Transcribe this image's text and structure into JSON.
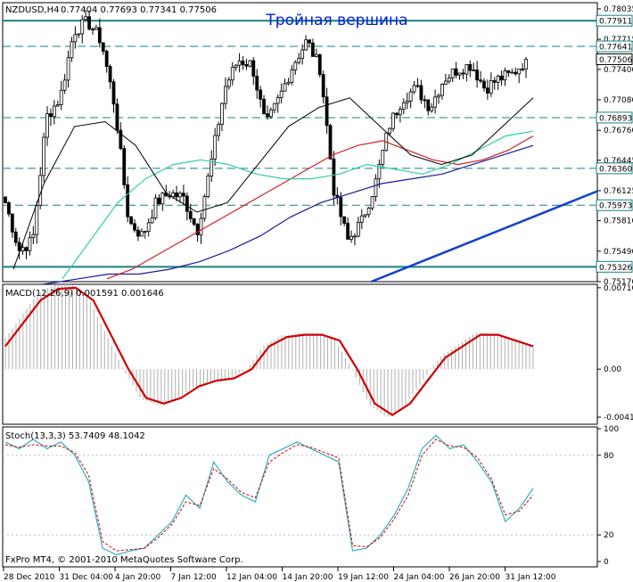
{
  "symbol_label": "NZDUSD,H4",
  "ohlc_readout": "0.77404 0.77693 0.77341 0.77506",
  "title": "Тройная вершина",
  "footer": "FxPro MT4, © 2001-2010 MetaQuotes Software Corp.",
  "colors": {
    "bull": "#000000",
    "ma_fast": "#000000",
    "ma_mid": "#2fd0a0",
    "ma_slow_red": "#d02020",
    "ma_slow_blue": "#1a1aa0",
    "trend": "#1040d0",
    "level": "#1a8080",
    "macd": "#d00000",
    "hist": "#b0b0b0",
    "stoch_main": "#30b0c0",
    "stoch_signal": "#d00000",
    "tag_bg": "#ffffff"
  },
  "chart_data": [
    {
      "type": "candlestick",
      "title": "Тройная вершина",
      "ylim": [
        0.7517,
        0.781
      ],
      "y_ticks": [
        "0.78035",
        "0.77715",
        "0.77400",
        "0.77080",
        "0.76760",
        "0.76445",
        "0.76125",
        "0.75810",
        "0.75490",
        "0.75170"
      ],
      "levels": [
        {
          "value": 0.77911,
          "label": "0.77911",
          "style": "solid"
        },
        {
          "value": 0.77641,
          "label": "0.77641",
          "style": "dashed"
        },
        {
          "value": 0.76893,
          "label": "0.76893",
          "style": "dashed"
        },
        {
          "value": 0.7636,
          "label": "0.76360",
          "style": "dashed"
        },
        {
          "value": 0.75973,
          "label": "0.75973",
          "style": "dashed"
        },
        {
          "value": 0.75326,
          "label": "0.75326",
          "style": "solid"
        }
      ],
      "current_price": {
        "value": 0.77506,
        "label": "0.77506"
      },
      "trendline": {
        "from": [
          0.62,
          0.7517
        ],
        "to": [
          1.0,
          0.7612
        ]
      },
      "close_path": [
        0.76,
        0.755,
        0.756,
        0.769,
        0.771,
        0.778,
        0.779,
        0.777,
        0.77,
        0.758,
        0.7565,
        0.76,
        0.761,
        0.7605,
        0.757,
        0.764,
        0.772,
        0.775,
        0.7745,
        0.768,
        0.771,
        0.7745,
        0.777,
        0.774,
        0.761,
        0.756,
        0.758,
        0.762,
        0.768,
        0.771,
        0.772,
        0.77,
        0.773,
        0.774,
        0.7745,
        0.772,
        0.773,
        0.7735,
        0.775
      ],
      "ma_fast": [
        0.753,
        0.762,
        0.768,
        0.7685,
        0.766,
        0.761,
        0.759,
        0.76,
        0.764,
        0.768,
        0.77,
        0.771,
        0.768,
        0.765,
        0.764,
        0.765,
        0.768,
        0.771
      ],
      "ma_mid": [
        0.752,
        0.756,
        0.76,
        0.7625,
        0.764,
        0.7645,
        0.764,
        0.763,
        0.7625,
        0.7625,
        0.763,
        0.764,
        0.7635,
        0.763,
        0.764,
        0.7655,
        0.767,
        0.7675
      ],
      "ma_slow_red": [
        0.752,
        0.753,
        0.7545,
        0.756,
        0.7575,
        0.759,
        0.7605,
        0.762,
        0.7635,
        0.765,
        0.766,
        0.7665,
        0.7655,
        0.7645,
        0.764,
        0.7645,
        0.7655,
        0.767
      ],
      "ma_slow_blue": [
        0.751,
        0.7515,
        0.752,
        0.7525,
        0.7525,
        0.753,
        0.7538,
        0.755,
        0.7565,
        0.7585,
        0.76,
        0.761,
        0.762,
        0.7625,
        0.763,
        0.764,
        0.765,
        0.766
      ]
    },
    {
      "type": "line",
      "label": "MACD(12,26,9) 0.001591 0.001646",
      "ylim": [
        -0.0048,
        0.0074
      ],
      "y_ticks": [
        {
          "value": 0.0071,
          "label": "0.007104"
        },
        {
          "value": 0.0,
          "label": "0.00"
        },
        {
          "value": -0.00418,
          "label": "-0.00418"
        }
      ],
      "values": [
        0.002,
        0.004,
        0.006,
        0.007,
        0.0071,
        0.006,
        0.003,
        0.0,
        -0.0025,
        -0.003,
        -0.0025,
        -0.0015,
        -0.001,
        -0.0008,
        0.0,
        0.002,
        0.0028,
        0.003,
        0.003,
        0.0025,
        0.0,
        -0.003,
        -0.004,
        -0.003,
        -0.001,
        0.001,
        0.002,
        0.003,
        0.003,
        0.0025,
        0.002
      ]
    },
    {
      "type": "line",
      "label": "Stoch(13,3,3) 53.7409 48.1042",
      "ylim": [
        0,
        100
      ],
      "y_ticks": [
        {
          "value": 100,
          "label": "100"
        },
        {
          "value": 80,
          "label": "80"
        },
        {
          "value": 20,
          "label": "20"
        },
        {
          "value": 0,
          "label": "0"
        }
      ],
      "main": [
        90,
        85,
        92,
        85,
        90,
        80,
        60,
        10,
        5,
        8,
        10,
        20,
        30,
        50,
        40,
        75,
        60,
        50,
        45,
        80,
        85,
        90,
        85,
        80,
        75,
        8,
        10,
        20,
        35,
        55,
        85,
        95,
        85,
        88,
        75,
        60,
        30,
        40,
        55
      ],
      "signal": [
        88,
        86,
        88,
        87,
        87,
        82,
        65,
        15,
        8,
        9,
        10,
        18,
        28,
        45,
        42,
        70,
        62,
        52,
        48,
        75,
        82,
        88,
        86,
        82,
        78,
        12,
        11,
        18,
        32,
        50,
        80,
        92,
        87,
        86,
        78,
        62,
        35,
        38,
        50
      ],
      "signal_style": "dashed"
    }
  ],
  "x_axis": {
    "labels": [
      "28 Dec 2010",
      "31 Dec 04:00",
      "4 Jan 20:00",
      "7 Jan 12:00",
      "12 Jan 04:00",
      "14 Jan 20:00",
      "19 Jan 12:00",
      "24 Jan 04:00",
      "26 Jan 20:00",
      "31 Jan 12:00"
    ]
  }
}
